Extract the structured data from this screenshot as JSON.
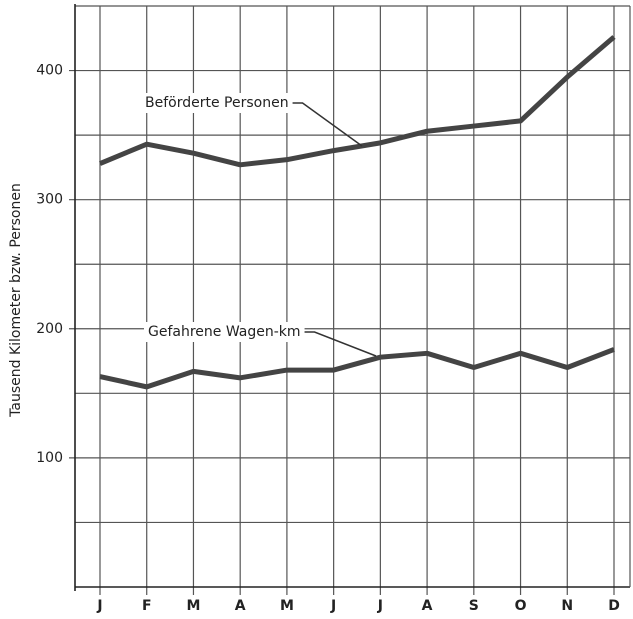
{
  "chart_data": {
    "type": "line",
    "ylabel": "Tausend Kilometer bzw. Personen",
    "categories": [
      "J",
      "F",
      "M",
      "A",
      "M",
      "J",
      "J",
      "A",
      "S",
      "O",
      "N",
      "D"
    ],
    "series": [
      {
        "name": "Beförderte Personen",
        "color": "#444444",
        "values": [
          328,
          343,
          336,
          327,
          331,
          338,
          344,
          353,
          357,
          361,
          395,
          426
        ]
      },
      {
        "name": "Gefahrene Wagen-km",
        "color": "#444444",
        "values": [
          163,
          155,
          167,
          162,
          168,
          168,
          178,
          181,
          170,
          181,
          170,
          184
        ]
      }
    ],
    "ylim": [
      0,
      450
    ],
    "yticks": [
      100,
      200,
      300,
      400
    ],
    "minor_yticks": [
      50,
      150,
      250,
      350,
      450
    ],
    "grid": true
  }
}
